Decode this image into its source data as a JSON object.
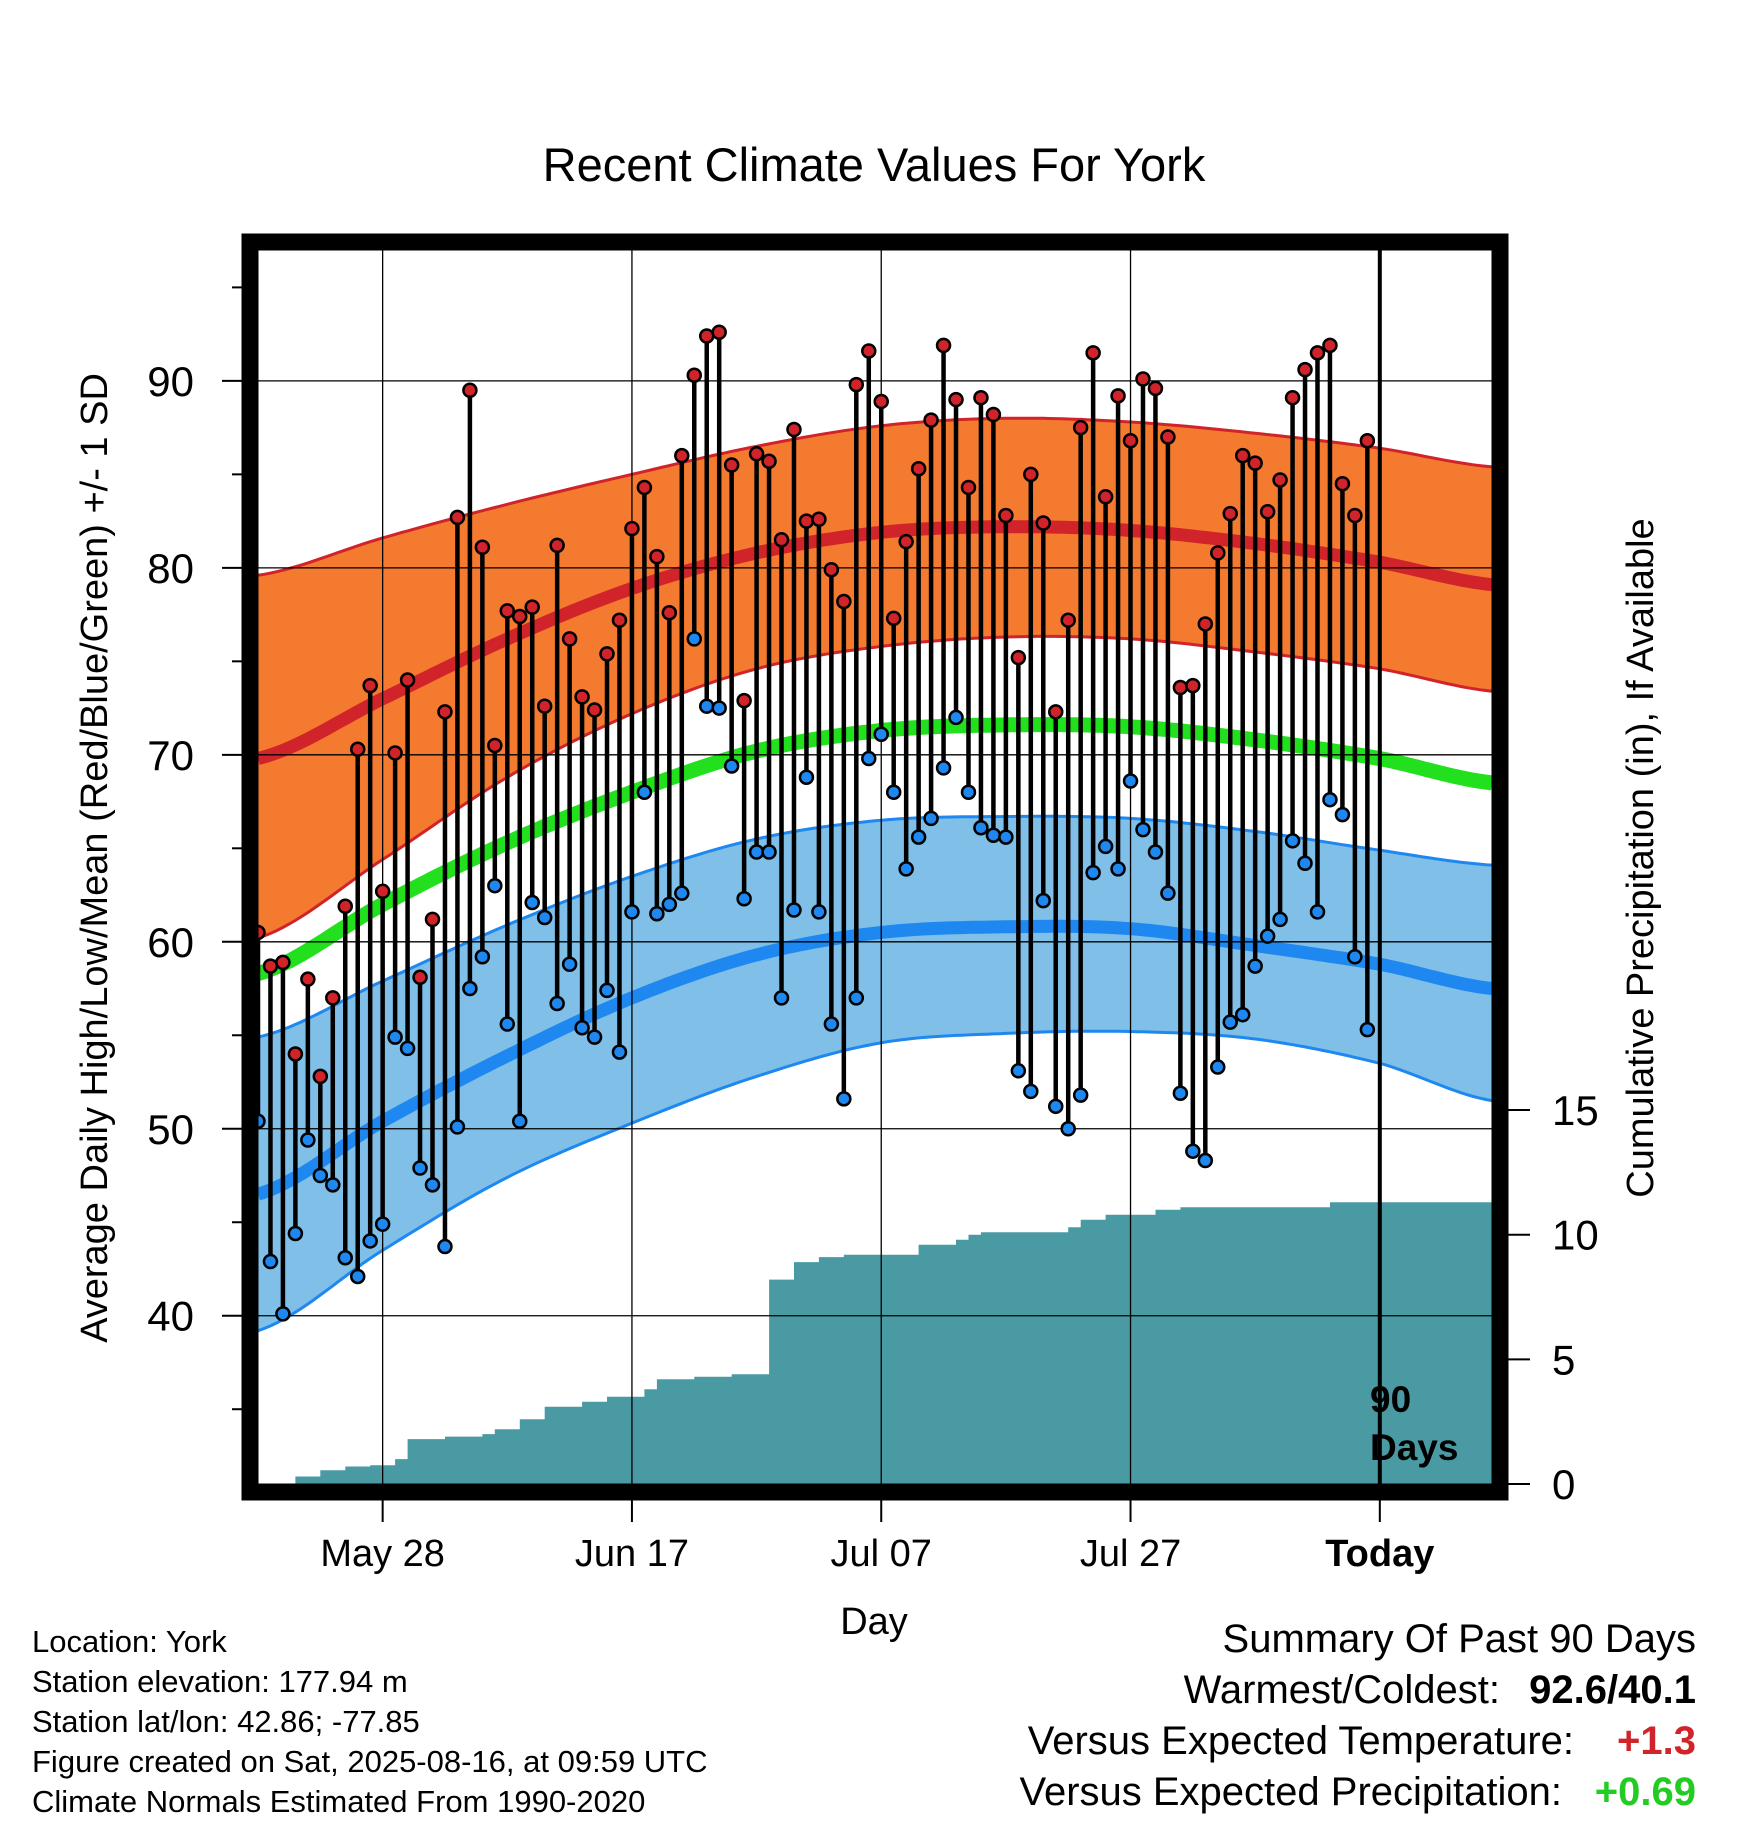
{
  "title": "Recent Climate Values For York",
  "y_axis_label": "Average Daily High/Low/Mean (Red/Blue/Green) +/- 1 SD",
  "y2_axis_label": "Cumulative Precipitation (in), If Available",
  "x_axis_label": "Day",
  "period_label_1": "90",
  "period_label_2": "Days",
  "colors": {
    "high_band": "#f47a30",
    "high_line": "#d1232a",
    "low_band": "#7fbfe8",
    "low_line": "#1e88f0",
    "mean_line": "#22e01e",
    "precip": "#4a9aa4",
    "high_dot": "#d1232a",
    "low_dot": "#1e88f0",
    "temp_anomaly": "#d1232a",
    "precip_anomaly": "#22cc22"
  },
  "info": {
    "location": "Location: York",
    "elevation": "Station elevation: 177.94 m",
    "latlon": "Station lat/lon: 42.86; -77.85",
    "created": "Figure created on Sat, 2025-08-16, at 09:59 UTC",
    "normals": "Climate Normals Estimated From 1990-2020"
  },
  "summary": {
    "heading": "Summary Of Past 90 Days",
    "warm_cold_label": "Warmest/Coldest:",
    "warm_cold_value": "92.6/40.1",
    "temp_label": "Versus Expected Temperature:",
    "temp_value": "+1.3",
    "precip_label": "Versus Expected Precipitation:",
    "precip_value": "+0.69"
  },
  "chart_data": {
    "type": "line",
    "title": "Recent Climate Values For York",
    "xlabel": "Day",
    "ylabel": "Average Daily High/Low/Mean (Red/Blue/Green) +/- 1 SD",
    "y2label": "Cumulative Precipitation (in), If Available",
    "x_range": [
      -90,
      9
    ],
    "x_ticks": [
      {
        "x": -80,
        "label": "May 28"
      },
      {
        "x": -60,
        "label": "Jun 17"
      },
      {
        "x": -40,
        "label": "Jul 07"
      },
      {
        "x": -20,
        "label": "Jul 27"
      },
      {
        "x": 0,
        "label": "Today"
      }
    ],
    "ylim": [
      31,
      97
    ],
    "y_ticks": [
      40,
      50,
      60,
      70,
      80,
      90
    ],
    "y2lim": [
      0,
      49.5
    ],
    "y2_ticks": [
      0,
      5,
      10,
      15
    ],
    "grid": true,
    "today_marker_x": 0,
    "normals": {
      "x": [
        -90,
        -80,
        -70,
        -60,
        -50,
        -40,
        -30,
        -20,
        -10,
        0,
        9
      ],
      "high_mean": [
        69.8,
        73.0,
        76.2,
        78.9,
        80.8,
        81.9,
        82.2,
        82.0,
        81.3,
        80.3,
        79.1
      ],
      "high_upper": [
        79.6,
        81.6,
        83.4,
        85.0,
        86.5,
        87.6,
        88.0,
        87.8,
        87.2,
        86.4,
        85.4
      ],
      "high_lower": [
        60.2,
        64.4,
        68.8,
        72.2,
        74.6,
        75.8,
        76.3,
        76.2,
        75.5,
        74.6,
        73.4
      ],
      "mean_normal": [
        58.3,
        62.0,
        65.3,
        68.0,
        70.2,
        71.3,
        71.6,
        71.5,
        70.8,
        69.8,
        68.5
      ],
      "low_mean": [
        46.5,
        50.4,
        53.9,
        57.0,
        59.3,
        60.5,
        60.8,
        60.7,
        59.8,
        58.8,
        57.5
      ],
      "low_upper": [
        54.9,
        57.9,
        60.9,
        63.5,
        65.5,
        66.5,
        66.7,
        66.6,
        65.9,
        64.9,
        64.1
      ],
      "low_lower": [
        39.2,
        43.5,
        47.4,
        50.3,
        52.8,
        54.6,
        55.1,
        55.2,
        54.8,
        53.5,
        51.5
      ]
    },
    "daily": {
      "start_x": -90,
      "high": [
        60.5,
        58.7,
        58.9,
        54.0,
        58.0,
        52.8,
        57.0,
        61.9,
        70.3,
        73.7,
        62.7,
        70.1,
        74.0,
        58.1,
        61.2,
        72.3,
        82.7,
        89.5,
        81.1,
        70.5,
        77.7,
        77.4,
        77.9,
        72.6,
        81.2,
        76.2,
        73.1,
        72.4,
        75.4,
        77.2,
        82.1,
        84.3,
        80.6,
        77.6,
        86.0,
        90.3,
        92.4,
        92.6,
        85.5,
        72.9,
        86.1,
        85.7,
        81.5,
        87.4,
        82.5,
        82.6,
        79.9,
        78.2,
        89.8,
        91.6,
        88.9,
        77.3,
        81.4,
        85.3,
        87.9,
        91.9,
        89.0,
        84.3,
        89.1,
        88.2,
        82.8,
        75.2,
        85.0,
        82.4,
        72.3,
        77.2,
        87.5,
        91.5,
        83.8,
        89.2,
        86.8,
        90.1,
        89.6,
        87.0,
        73.6,
        73.7,
        77.0,
        80.8,
        82.9,
        86.0,
        85.6,
        83.0,
        84.7,
        89.1,
        90.6,
        91.5,
        91.9,
        84.5,
        82.8,
        86.8
      ],
      "low": [
        50.4,
        42.9,
        40.1,
        44.4,
        49.4,
        47.5,
        47.0,
        43.1,
        42.1,
        44.0,
        44.9,
        54.9,
        54.3,
        47.9,
        47.0,
        43.7,
        50.1,
        57.5,
        59.2,
        63.0,
        55.6,
        50.4,
        62.1,
        61.3,
        56.7,
        58.8,
        55.4,
        54.9,
        57.4,
        54.1,
        61.6,
        68.0,
        61.5,
        62.0,
        62.6,
        76.2,
        72.6,
        72.5,
        69.4,
        62.3,
        64.8,
        64.8,
        57.0,
        61.7,
        68.8,
        61.6,
        55.6,
        51.6,
        57.0,
        69.8,
        71.1,
        68.0,
        63.9,
        65.6,
        66.6,
        69.3,
        72.0,
        68.0,
        66.1,
        65.7,
        65.6,
        53.1,
        52.0,
        62.2,
        51.2,
        50.0,
        51.8,
        63.7,
        65.1,
        63.9,
        68.6,
        66.0,
        64.8,
        62.6,
        51.9,
        48.8,
        48.3,
        53.3,
        55.7,
        56.1,
        58.7,
        60.3,
        61.2,
        65.4,
        64.2,
        61.6,
        67.6,
        66.8,
        59.2,
        55.3
      ]
    },
    "precipitation": {
      "x": [
        -87,
        -85,
        -83,
        -81,
        -80,
        -79,
        -78,
        -75,
        -72,
        -71,
        -69,
        -67,
        -64,
        -62,
        -60,
        -59,
        -58,
        -55,
        -52,
        -51,
        -49,
        -47,
        -45,
        -44,
        -43,
        -41,
        -38,
        -37,
        -36,
        -34,
        -33,
        -32,
        -30,
        -26,
        -25,
        -24,
        -22,
        -20,
        -18,
        -16,
        -14,
        -10,
        -4,
        9
      ],
      "y": [
        0.3,
        0.55,
        0.7,
        0.75,
        0.75,
        1.0,
        1.8,
        1.9,
        2.0,
        2.2,
        2.6,
        3.1,
        3.3,
        3.5,
        3.5,
        3.8,
        4.2,
        4.3,
        4.4,
        4.4,
        8.2,
        8.9,
        9.1,
        9.1,
        9.2,
        9.2,
        9.2,
        9.6,
        9.6,
        9.8,
        10.0,
        10.1,
        10.1,
        10.1,
        10.3,
        10.6,
        10.8,
        10.8,
        11.0,
        11.1,
        11.1,
        11.1,
        11.3,
        11.3
      ]
    }
  }
}
